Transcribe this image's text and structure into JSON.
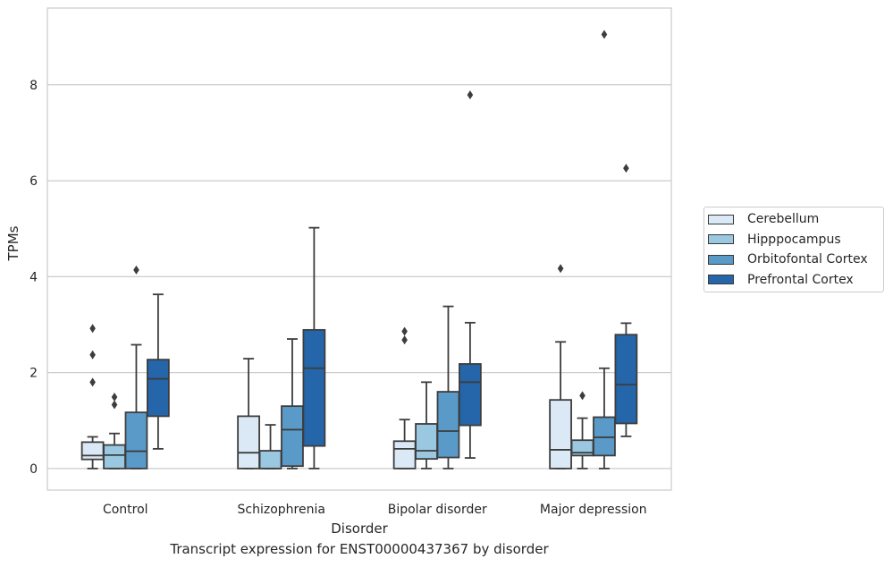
{
  "chart_data": {
    "type": "boxplot",
    "caption": "Transcript expression for ENST00000437367 by disorder",
    "xlabel": "Disorder",
    "ylabel": "TPMs",
    "ylim": [
      -0.45,
      9.6
    ],
    "yticks": [
      0,
      2,
      4,
      6,
      8
    ],
    "grid": "horizontal",
    "legend_position": "right",
    "categories": [
      "Control",
      "Schizophrenia",
      "Bipolar disorder",
      "Major depression"
    ],
    "series": [
      {
        "name": "Cerebellum",
        "color": "#dbe9f6",
        "boxes": [
          {
            "whisker_low": 0.0,
            "q1": 0.19,
            "median": 0.27,
            "q3": 0.55,
            "whisker_high": 0.66,
            "outliers": [
              1.8,
              2.37,
              2.92
            ]
          },
          {
            "whisker_low": 0.0,
            "q1": 0.0,
            "median": 0.33,
            "q3": 1.09,
            "whisker_high": 2.29,
            "outliers": []
          },
          {
            "whisker_low": 0.0,
            "q1": 0.0,
            "median": 0.41,
            "q3": 0.57,
            "whisker_high": 1.02,
            "outliers": [
              2.68,
              2.86
            ]
          },
          {
            "whisker_low": 0.0,
            "q1": 0.0,
            "median": 0.39,
            "q3": 1.43,
            "whisker_high": 2.64,
            "outliers": [
              4.17
            ]
          }
        ]
      },
      {
        "name": "Hipppocampus",
        "color": "#9ac8e0",
        "boxes": [
          {
            "whisker_low": 0.0,
            "q1": 0.0,
            "median": 0.28,
            "q3": 0.49,
            "whisker_high": 0.73,
            "outliers": [
              1.33,
              1.49
            ]
          },
          {
            "whisker_low": 0.0,
            "q1": 0.0,
            "median": 0.0,
            "q3": 0.37,
            "whisker_high": 0.91,
            "outliers": []
          },
          {
            "whisker_low": 0.0,
            "q1": 0.2,
            "median": 0.37,
            "q3": 0.93,
            "whisker_high": 1.8,
            "outliers": []
          },
          {
            "whisker_low": 0.0,
            "q1": 0.27,
            "median": 0.33,
            "q3": 0.59,
            "whisker_high": 1.05,
            "outliers": [
              1.52
            ]
          }
        ]
      },
      {
        "name": "Orbitofontal Cortex",
        "color": "#5a9ac8",
        "boxes": [
          {
            "whisker_low": 0.0,
            "q1": 0.0,
            "median": 0.36,
            "q3": 1.17,
            "whisker_high": 2.58,
            "outliers": [
              4.14
            ]
          },
          {
            "whisker_low": 0.0,
            "q1": 0.05,
            "median": 0.81,
            "q3": 1.3,
            "whisker_high": 2.7,
            "outliers": []
          },
          {
            "whisker_low": 0.0,
            "q1": 0.23,
            "median": 0.78,
            "q3": 1.6,
            "whisker_high": 3.38,
            "outliers": []
          },
          {
            "whisker_low": 0.0,
            "q1": 0.27,
            "median": 0.65,
            "q3": 1.07,
            "whisker_high": 2.09,
            "outliers": [
              9.05
            ]
          }
        ]
      },
      {
        "name": "Prefrontal Cortex",
        "color": "#2565a9",
        "boxes": [
          {
            "whisker_low": 0.41,
            "q1": 1.09,
            "median": 1.87,
            "q3": 2.27,
            "whisker_high": 3.63,
            "outliers": []
          },
          {
            "whisker_low": 0.0,
            "q1": 0.47,
            "median": 2.09,
            "q3": 2.89,
            "whisker_high": 5.02,
            "outliers": []
          },
          {
            "whisker_low": 0.22,
            "q1": 0.9,
            "median": 1.8,
            "q3": 2.18,
            "whisker_high": 3.04,
            "outliers": [
              7.79
            ]
          },
          {
            "whisker_low": 0.67,
            "q1": 0.94,
            "median": 1.75,
            "q3": 2.79,
            "whisker_high": 3.03,
            "outliers": [
              6.26
            ]
          }
        ]
      }
    ]
  }
}
